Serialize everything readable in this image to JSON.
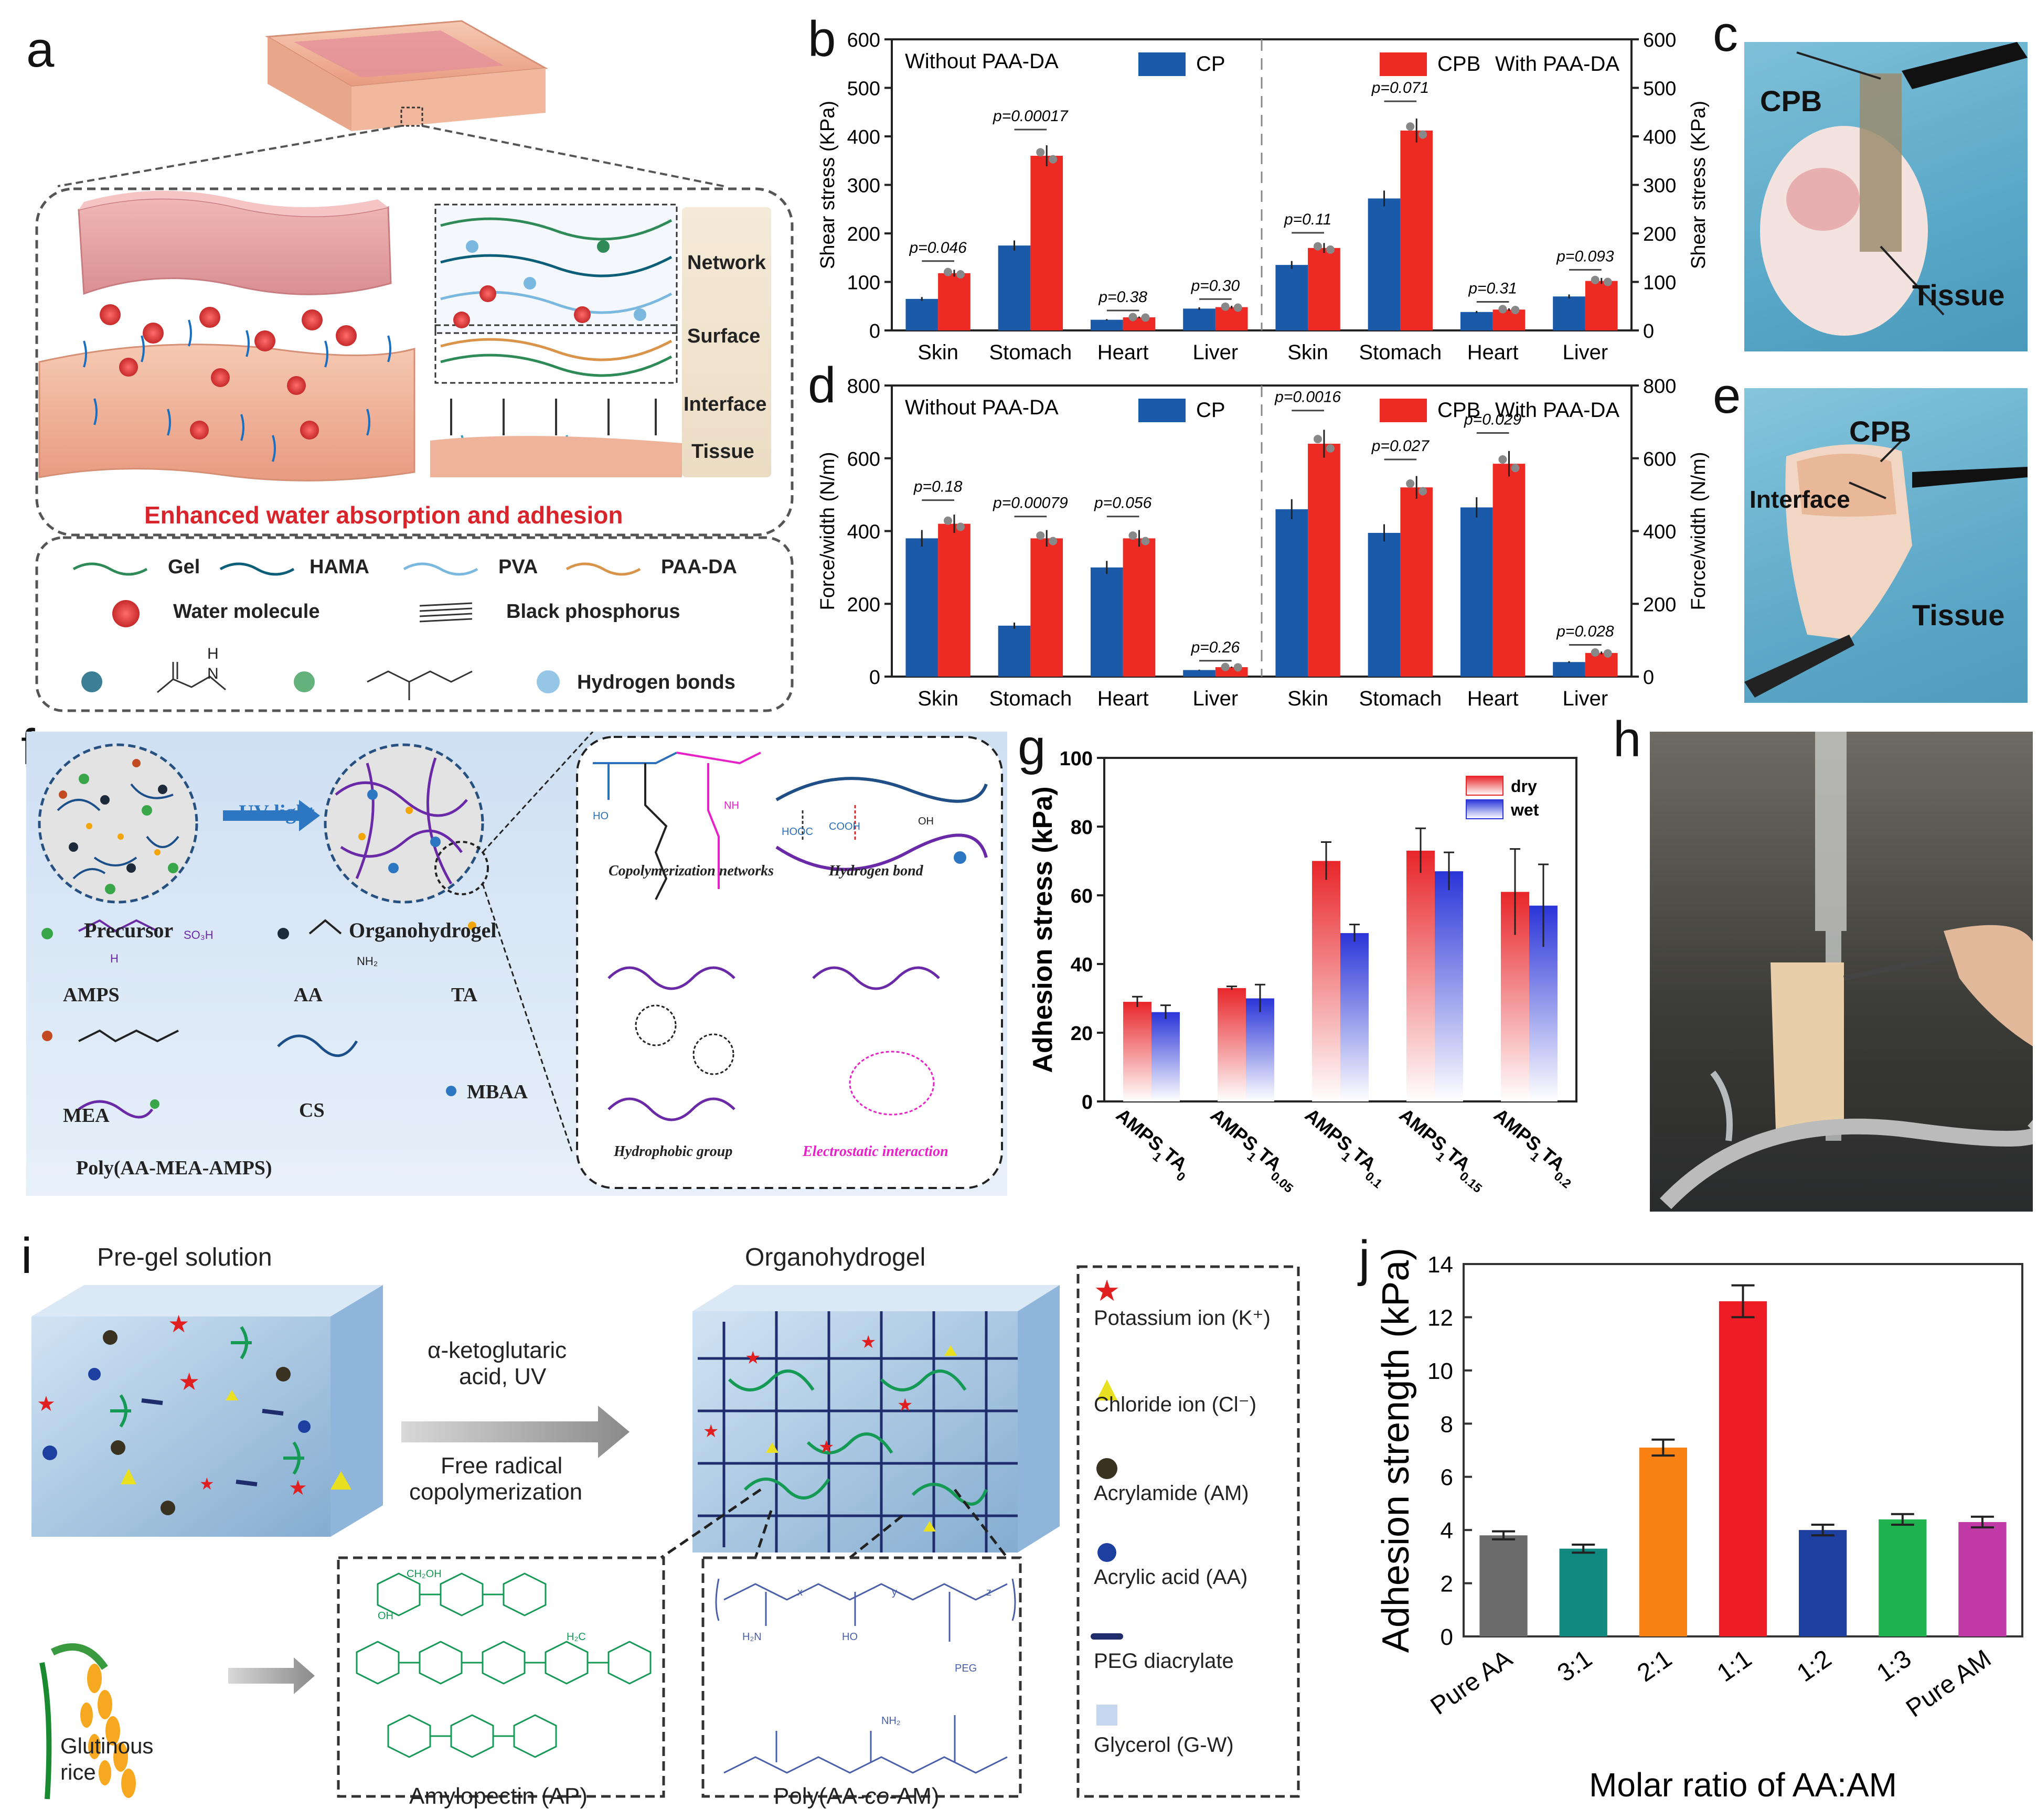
{
  "panel_labels": {
    "a": "a",
    "b": "b",
    "c": "c",
    "d": "d",
    "e": "e",
    "f": "f",
    "g": "g",
    "h": "h",
    "i": "i",
    "j": "j"
  },
  "panel_a": {
    "layers": [
      "Network",
      "Surface",
      "Interface",
      "Tissue"
    ],
    "caption": "Enhanced water absorption and adhesion",
    "legend": {
      "gel": "Gel",
      "hama": "HAMA",
      "pva": "PVA",
      "paa_da": "PAA-DA",
      "water": "Water molecule",
      "bp": "Black phosphorus",
      "hbonds": "Hydrogen bonds"
    },
    "chem": {
      "h": "H",
      "n": "N"
    },
    "colors": {
      "caption": "#d9242c",
      "gel": "#2e8b57",
      "hama": "#0b5e78",
      "pva": "#7ab8e0",
      "paa_da": "#d9944a"
    }
  },
  "panel_c": {
    "label_cpb": "CPB",
    "label_tissue": "Tissue"
  },
  "panel_e": {
    "label_cpb": "CPB",
    "label_interface": "Interface",
    "label_tissue": "Tissue"
  },
  "panel_f": {
    "uv": "UV light",
    "precursor": "Precursor",
    "organo": "Organohydrogel",
    "legend": {
      "amps": "AMPS",
      "aa": "AA",
      "ta": "TA",
      "mea": "MEA",
      "cs": "CS",
      "mbaa": "MBAA",
      "poly": "Poly(AA-MEA-AMPS)"
    },
    "chem": {
      "so3h": "SO₃H",
      "h": "H",
      "nh2": "NH₂",
      "n": "N",
      "o": "O",
      "ho": "HO",
      "nh": "NH",
      "cooh": "COOH",
      "hooc": "HOOC",
      "oh": "OH"
    },
    "inset": {
      "copoly": "Copolymerization networks",
      "hbond": "Hydrogen bond",
      "hydrophobic": "Hydrophobic group",
      "electro": "Electrostatic interaction"
    }
  },
  "panel_i": {
    "pregel": "Pre-gel solution",
    "organo": "Organohydrogel",
    "arrow_top1": "α-ketoglutaric",
    "arrow_top2": "acid, UV",
    "arrow_bot1": "Free radical",
    "arrow_bot2": "copolymerization",
    "rice1": "Glutinous",
    "rice2": "rice",
    "ap": "Amylopectin (AP)",
    "poly_pre": "Poly(AA-",
    "poly_co": "co",
    "poly_post": "-AM)",
    "chem": {
      "ch2oh": "CH₂OH",
      "oh": "OH",
      "o": "O",
      "h2c": "H₂C",
      "h2n": "H₂N",
      "ho": "HO",
      "peg": "PEG",
      "nh2": "NH₂",
      "x": "x",
      "y": "y",
      "z": "z"
    },
    "legend": [
      "Potassium ion (K⁺)",
      "Chloride ion (Cl⁻)",
      "Acrylamide (AM)",
      "Acrylic acid (AA)",
      "PEG diacrylate",
      "Glycerol (G-W)"
    ]
  },
  "chart_data": [
    {
      "id": "b",
      "type": "bar",
      "categories": [
        "Skin",
        "Stomach",
        "Heart",
        "Liver",
        "Skin",
        "Stomach",
        "Heart",
        "Liver"
      ],
      "series": [
        {
          "name": "CP",
          "values": [
            65,
            175,
            22,
            45,
            135,
            272,
            38,
            70
          ],
          "color": "#1a5aa8"
        },
        {
          "name": "CPB",
          "values": [
            118,
            360,
            27,
            48,
            170,
            412,
            43,
            102
          ],
          "color": "#ee2a24"
        }
      ],
      "pvalues": [
        "p=0.046",
        "p=0.00017",
        "p=0.38",
        "p=0.30",
        "p=0.11",
        "p=0.071",
        "p=0.31",
        "p=0.093"
      ],
      "legend_left": "Without PAA-DA",
      "legend_right": "With PAA-DA",
      "ylabel": "Shear stress (KPa)",
      "ylabel_right": "Shear stress (KPa)",
      "ylim": [
        0,
        600
      ],
      "yticks": [
        0,
        100,
        200,
        300,
        400,
        500,
        600
      ]
    },
    {
      "id": "d",
      "type": "bar",
      "categories": [
        "Skin",
        "Stomach",
        "Heart",
        "Liver",
        "Skin",
        "Stomach",
        "Heart",
        "Liver"
      ],
      "series": [
        {
          "name": "CP",
          "values": [
            380,
            140,
            300,
            18,
            460,
            395,
            465,
            40
          ],
          "color": "#1a5aa8"
        },
        {
          "name": "CPB",
          "values": [
            420,
            380,
            380,
            26,
            640,
            520,
            585,
            65
          ],
          "color": "#ee2a24"
        }
      ],
      "pvalues": [
        "p=0.18",
        "p=0.00079",
        "p=0.056",
        "p=0.26",
        "p=0.0016",
        "p=0.027",
        "p=0.029",
        "p=0.028"
      ],
      "legend_left": "Without PAA-DA",
      "legend_right": "With PAA-DA",
      "ylabel": "Force/width (N/m)",
      "ylabel_right": "Force/width (N/m)",
      "ylim": [
        0,
        800
      ],
      "yticks": [
        0,
        200,
        400,
        600,
        800
      ]
    },
    {
      "id": "g",
      "type": "bar",
      "categories": [
        [
          "AMPS",
          "1",
          "TA",
          "0"
        ],
        [
          "AMPS",
          "1",
          "TA",
          "0.05"
        ],
        [
          "AMPS",
          "1",
          "TA",
          "0.1"
        ],
        [
          "AMPS",
          "1",
          "TA",
          "0.15"
        ],
        [
          "AMPS",
          "1",
          "TA",
          "0.2"
        ]
      ],
      "series": [
        {
          "name": "dry",
          "values": [
            29,
            33,
            70,
            73,
            61
          ],
          "errors": [
            1.5,
            0.5,
            5.5,
            6.5,
            12.5
          ],
          "color": "#e8262a"
        },
        {
          "name": "wet",
          "values": [
            26,
            30,
            49,
            67,
            57
          ],
          "errors": [
            2,
            4,
            2.5,
            5.5,
            12
          ],
          "color": "#2a35d8"
        }
      ],
      "ylabel": "Adhesion stress (kPa)",
      "ylim": [
        0,
        100
      ],
      "yticks": [
        0,
        20,
        40,
        60,
        80,
        100
      ]
    },
    {
      "id": "j",
      "type": "bar",
      "categories": [
        "Pure AA",
        "3:1",
        "2:1",
        "1:1",
        "1:2",
        "1:3",
        "Pure AM"
      ],
      "values": [
        3.8,
        3.3,
        7.1,
        12.6,
        4.0,
        4.4,
        4.3
      ],
      "errors": [
        0.15,
        0.15,
        0.3,
        0.6,
        0.2,
        0.2,
        0.2
      ],
      "colors": [
        "#6b6b6b",
        "#10897e",
        "#f98212",
        "#ee1c24",
        "#1c3fa0",
        "#1fb350",
        "#bf3aa4"
      ],
      "ylabel": "Adhesion strength (kPa)",
      "xlabel": "Molar ratio of AA:AM",
      "ylim": [
        0,
        14
      ],
      "yticks": [
        0,
        2,
        4,
        6,
        8,
        10,
        12,
        14
      ]
    }
  ]
}
